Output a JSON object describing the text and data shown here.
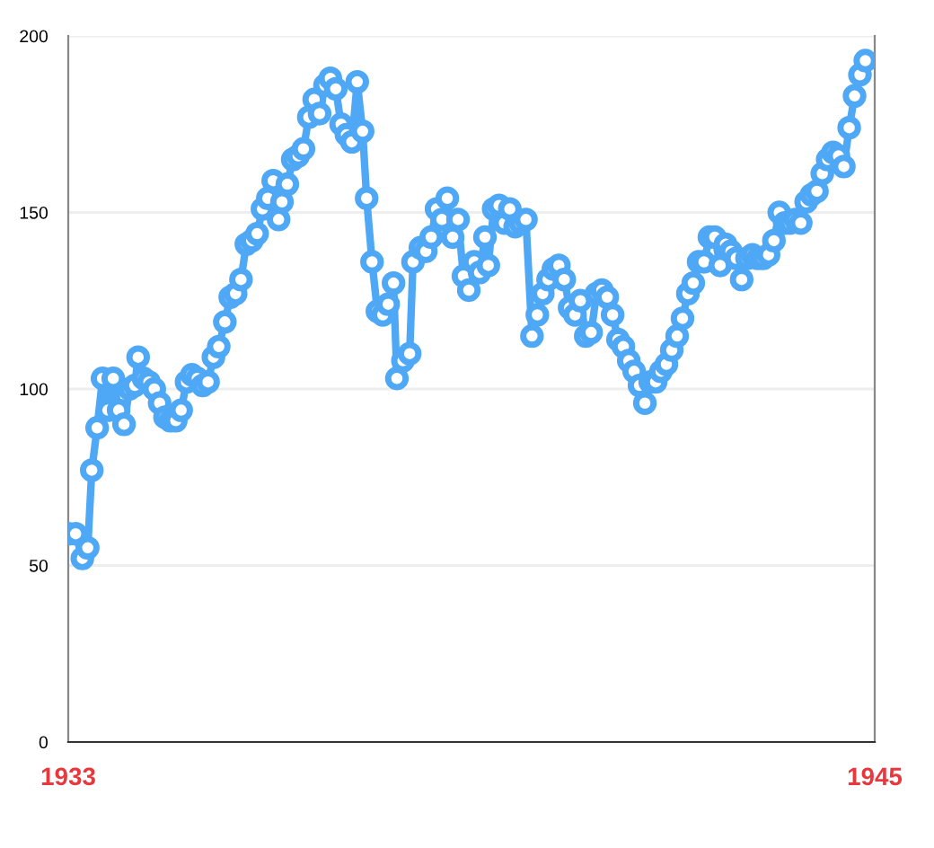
{
  "chart_data": {
    "type": "line",
    "color": "#4ea8f5",
    "marker": "circle",
    "line_style": "solid",
    "grid": "y",
    "xlim": [
      1933,
      1945
    ],
    "xticks": [
      1933,
      1945
    ],
    "ylim": [
      0,
      200
    ],
    "yticks": [
      0,
      50,
      100,
      150,
      200
    ],
    "x": [
      1933.0,
      1933.11,
      1933.21,
      1933.29,
      1933.35,
      1933.43,
      1933.51,
      1933.59,
      1933.67,
      1933.75,
      1933.83,
      1933.91,
      1933.99,
      1934.04,
      1934.12,
      1934.2,
      1934.28,
      1934.36,
      1934.44,
      1934.52,
      1934.6,
      1934.68,
      1934.76,
      1934.84,
      1934.92,
      1935.0,
      1935.08,
      1935.16,
      1935.24,
      1935.33,
      1935.41,
      1935.49,
      1935.57,
      1935.65,
      1935.73,
      1935.81,
      1935.89,
      1935.97,
      1936.05,
      1936.13,
      1936.18,
      1936.26,
      1936.34,
      1936.42,
      1936.5,
      1936.58,
      1936.66,
      1936.74,
      1936.82,
      1936.9,
      1936.98,
      1937.06,
      1937.14,
      1937.22,
      1937.3,
      1937.38,
      1937.44,
      1937.52,
      1937.6,
      1937.68,
      1937.76,
      1937.84,
      1937.89,
      1937.98,
      1938.08,
      1938.13,
      1938.24,
      1938.32,
      1938.4,
      1938.48,
      1938.56,
      1938.64,
      1938.72,
      1938.8,
      1938.88,
      1938.96,
      1939.04,
      1939.12,
      1939.2,
      1939.25,
      1939.33,
      1939.41,
      1939.49,
      1939.57,
      1939.65,
      1939.73,
      1939.81,
      1939.9,
      1939.98,
      1940.06,
      1940.14,
      1940.22,
      1940.3,
      1940.38,
      1940.46,
      1940.54,
      1940.62,
      1940.7,
      1940.78,
      1940.86,
      1940.94,
      1941.02,
      1941.1,
      1941.18,
      1941.26,
      1941.34,
      1941.42,
      1941.5,
      1941.58,
      1941.66,
      1941.74,
      1941.82,
      1941.9,
      1941.98,
      1942.06,
      1942.14,
      1942.22,
      1942.3,
      1942.38,
      1942.46,
      1942.54,
      1942.62,
      1942.7,
      1942.78,
      1942.86,
      1942.94,
      1943.02,
      1943.1,
      1943.18,
      1943.26,
      1943.34,
      1943.42,
      1943.5,
      1943.58,
      1943.66,
      1943.74,
      1943.82,
      1943.9,
      1943.98,
      1944.06,
      1944.14,
      1944.22,
      1944.3,
      1944.38,
      1944.46,
      1944.54,
      1944.62,
      1944.7,
      1944.78,
      1944.86
    ],
    "values": [
      59,
      59,
      52,
      55,
      77,
      89,
      103,
      94,
      103,
      94,
      90,
      100,
      101,
      109,
      103,
      102,
      100,
      96,
      92,
      91,
      91,
      94,
      102,
      104,
      103,
      101,
      102,
      109,
      112,
      119,
      126,
      127,
      131,
      141,
      142,
      144,
      151,
      154,
      159,
      148,
      153,
      158,
      165,
      166,
      168,
      177,
      182,
      178,
      186,
      188,
      185,
      175,
      172,
      170,
      187,
      173,
      154,
      136,
      122,
      121,
      124,
      130,
      103,
      108,
      110,
      136,
      140,
      139,
      143,
      151,
      148,
      154,
      143,
      148,
      132,
      128,
      136,
      133,
      143,
      135,
      151,
      152,
      147,
      151,
      146,
      147,
      148,
      115,
      121,
      127,
      131,
      134,
      135,
      131,
      123,
      121,
      125,
      115,
      116,
      127,
      128,
      126,
      121,
      114,
      112,
      108,
      105,
      101,
      96,
      102,
      102,
      105,
      107,
      111,
      115,
      120,
      127,
      130,
      136,
      136,
      143,
      143,
      135,
      141,
      139,
      137,
      131,
      137,
      138,
      137,
      137,
      138,
      142,
      150,
      147,
      147,
      148,
      147,
      153,
      155,
      156,
      161,
      165,
      167,
      166,
      163,
      174,
      183,
      189,
      193
    ]
  }
}
